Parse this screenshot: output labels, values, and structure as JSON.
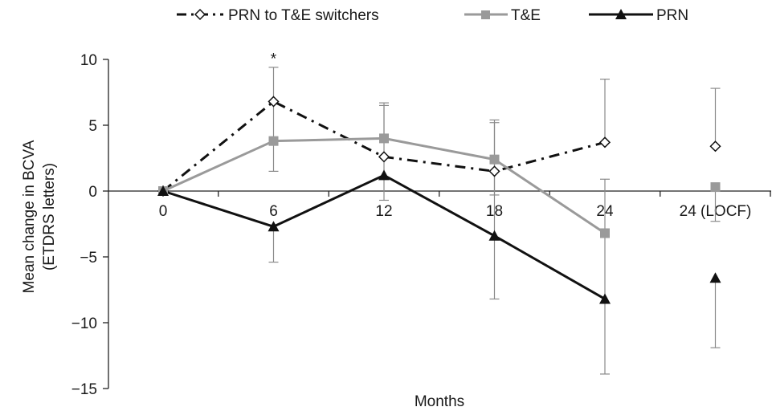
{
  "chart_data": {
    "type": "line",
    "xlabel": "Months",
    "ylabel_lines": [
      "Mean change in BCVA",
      "(ETDRS letters)"
    ],
    "categories": [
      "0",
      "6",
      "12",
      "18",
      "24",
      "24 (LOCF)"
    ],
    "yticks": [
      10,
      5,
      0,
      -5,
      -10,
      -15
    ],
    "ytick_labels": [
      "10",
      "5",
      "0",
      "−5",
      "−10",
      "−15"
    ],
    "ylim": [
      -15,
      10
    ],
    "grid": false,
    "legend_position": "top",
    "annotations": [
      {
        "category_index": 1,
        "y": 9.6,
        "text": "*"
      }
    ],
    "series": [
      {
        "name": "PRN to T&E switchers",
        "color": "#111111",
        "line": "dashdot",
        "marker": "diamond-open",
        "values": [
          0,
          6.8,
          2.6,
          1.5,
          3.7,
          3.4
        ],
        "err_low": [
          null,
          1.5,
          null,
          null,
          null,
          null
        ],
        "err_high": [
          null,
          9.4,
          null,
          null,
          8.5,
          7.8
        ],
        "connect_last": false
      },
      {
        "name": "T&E",
        "color": "#9a9a9a",
        "line": "solid",
        "marker": "square",
        "values": [
          0,
          3.8,
          4.0,
          2.4,
          -3.2,
          0.3
        ],
        "err_low": [
          null,
          null,
          null,
          -0.3,
          null,
          -2.3
        ],
        "err_high": [
          null,
          null,
          6.5,
          5.4,
          null,
          null
        ],
        "connect_last": false
      },
      {
        "name": "PRN",
        "color": "#111111",
        "line": "solid",
        "marker": "triangle",
        "values": [
          0,
          -2.7,
          1.2,
          -3.4,
          -8.2,
          -6.6
        ],
        "err_low": [
          null,
          -5.4,
          -0.7,
          -8.2,
          -13.9,
          -11.9
        ],
        "err_high": [
          null,
          null,
          6.7,
          5.2,
          0.9,
          null
        ],
        "connect_last": false
      }
    ]
  }
}
